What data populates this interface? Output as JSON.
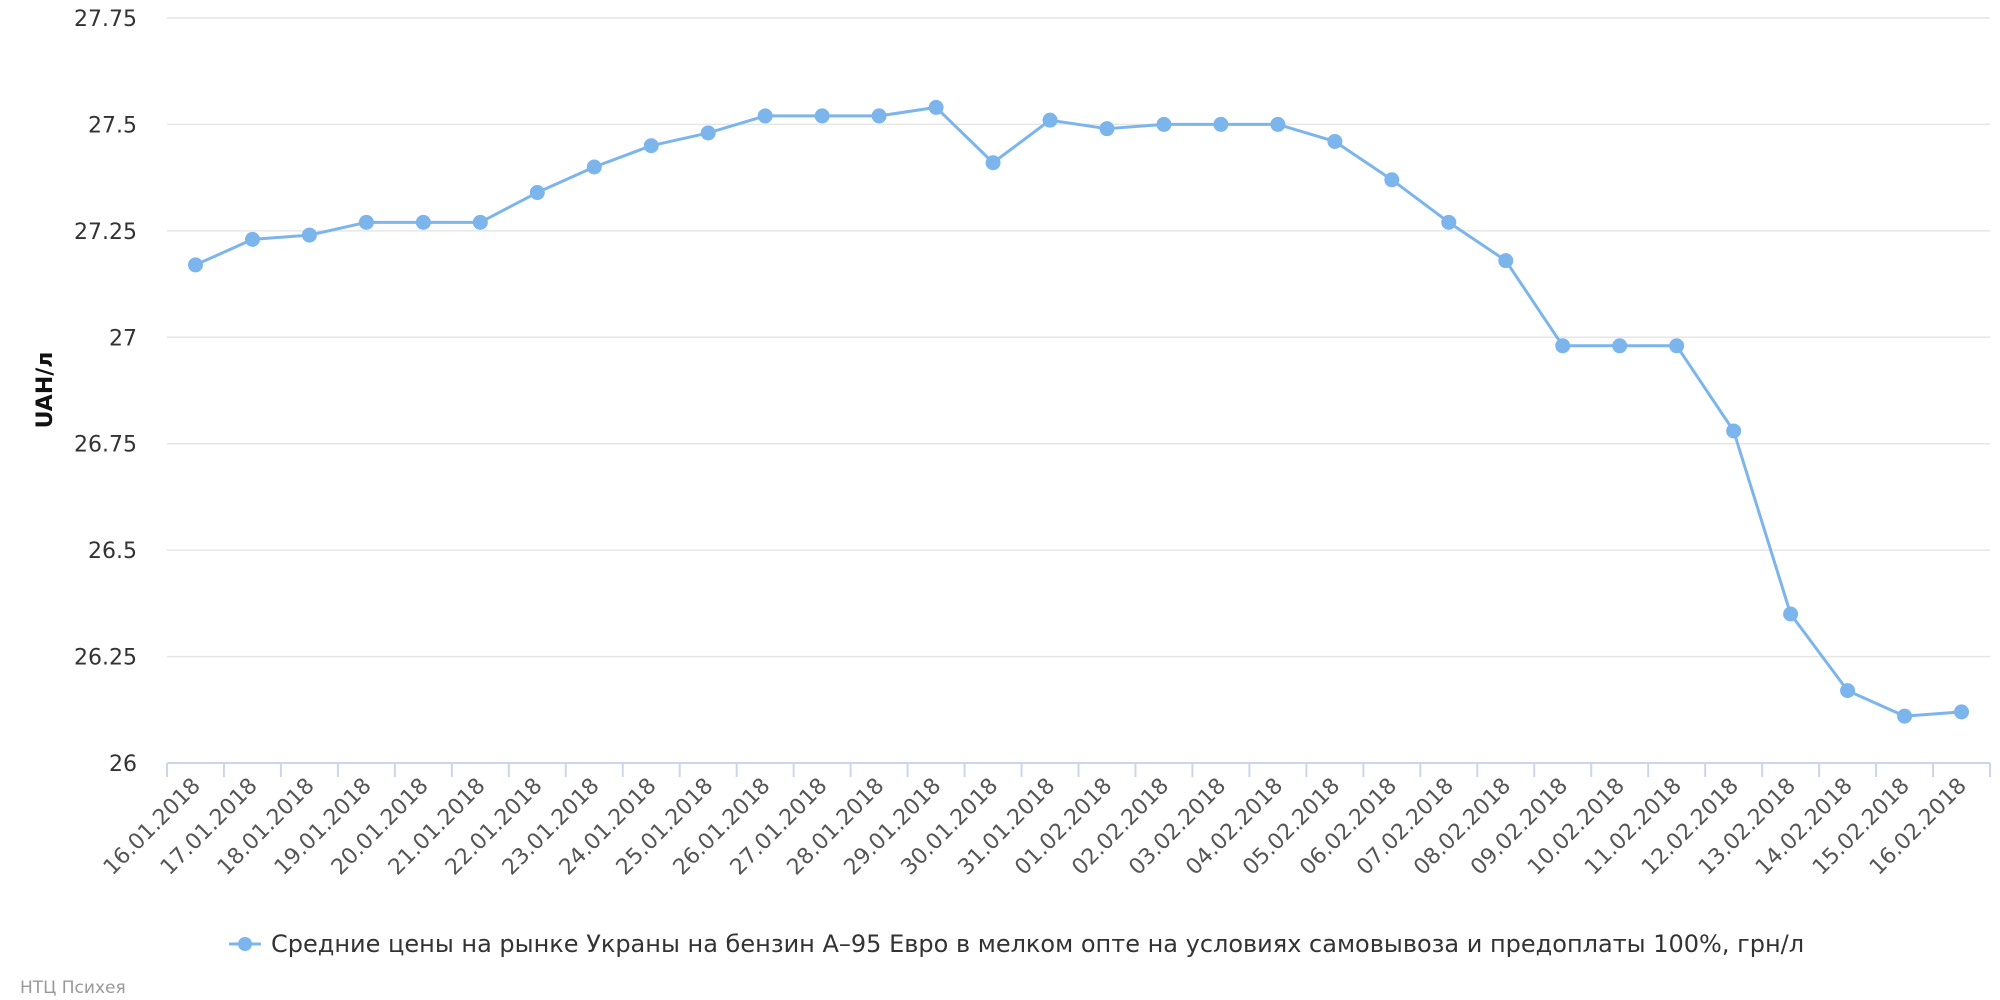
{
  "chart_data": {
    "type": "line",
    "ylabel": "UAH/л",
    "xlabel": "",
    "ylim": [
      26,
      27.75
    ],
    "yticks": [
      26,
      26.25,
      26.5,
      26.75,
      27,
      27.25,
      27.5,
      27.75
    ],
    "ytick_labels": [
      "26",
      "26.25",
      "26.5",
      "26.75",
      "27",
      "27.25",
      "27.5",
      "27.75"
    ],
    "grid": true,
    "legend_position": "bottom-center",
    "categories": [
      "16.01.2018",
      "17.01.2018",
      "18.01.2018",
      "19.01.2018",
      "20.01.2018",
      "21.01.2018",
      "22.01.2018",
      "23.01.2018",
      "24.01.2018",
      "25.01.2018",
      "26.01.2018",
      "27.01.2018",
      "28.01.2018",
      "29.01.2018",
      "30.01.2018",
      "31.01.2018",
      "01.02.2018",
      "02.02.2018",
      "03.02.2018",
      "04.02.2018",
      "05.02.2018",
      "06.02.2018",
      "07.02.2018",
      "08.02.2018",
      "09.02.2018",
      "10.02.2018",
      "11.02.2018",
      "12.02.2018",
      "13.02.2018",
      "14.02.2018",
      "15.02.2018",
      "16.02.2018"
    ],
    "series": [
      {
        "name": "Средние цены на рынке Украны на бензин А–95 Евро в мелком опте на условиях самовывоза и предоплаты 100%, грн/л",
        "color": "#7cb5ec",
        "values": [
          27.17,
          27.23,
          27.24,
          27.27,
          27.27,
          27.27,
          27.34,
          27.4,
          27.45,
          27.48,
          27.52,
          27.52,
          27.52,
          27.54,
          27.41,
          27.51,
          27.49,
          27.5,
          27.5,
          27.5,
          27.46,
          27.37,
          27.27,
          27.18,
          26.98,
          26.98,
          26.98,
          26.78,
          26.35,
          26.17,
          26.11,
          26.12
        ]
      }
    ]
  },
  "credit": "НТЦ Психея",
  "colors": {
    "series": "#7cb5ec",
    "grid": "#e6e6e6",
    "axis": "#ccd6eb"
  }
}
